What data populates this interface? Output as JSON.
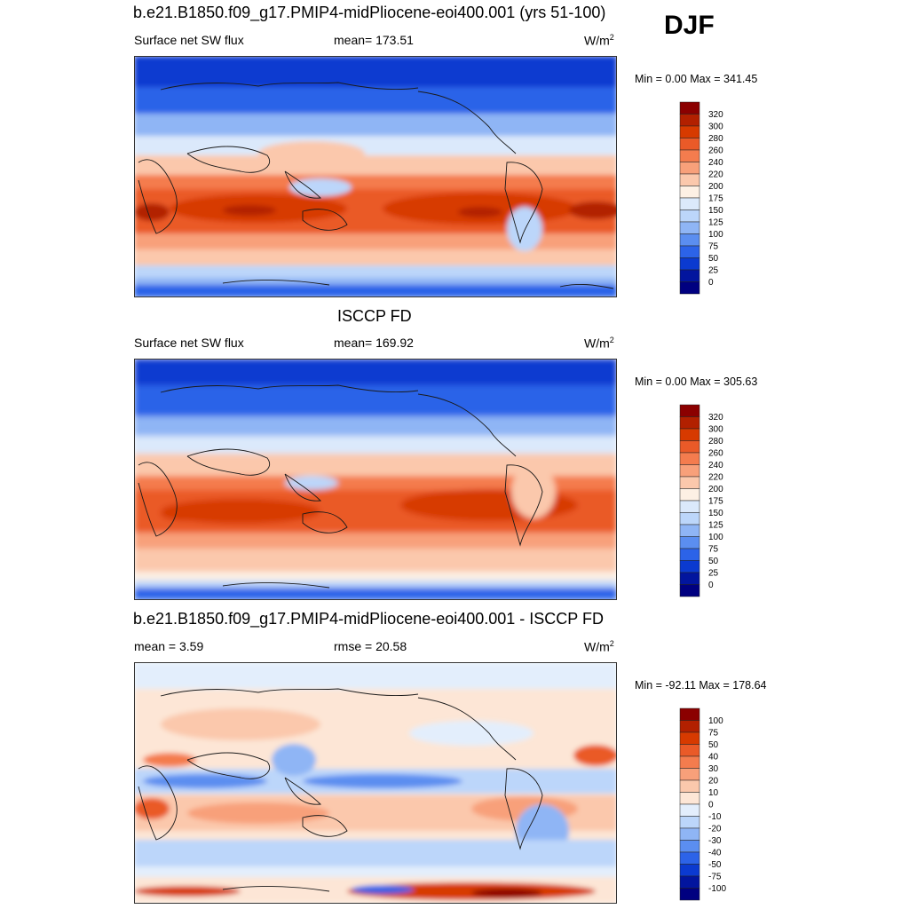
{
  "season": "DJF",
  "panels": [
    {
      "title": "b.e21.B1850.f09_g17.PMIP4-midPliocene-eoi400.001 (yrs 51-100)",
      "left": "Surface net SW flux",
      "center": "mean= 173.51",
      "units_base": "W/m",
      "units_exp": "2",
      "minmax": "Min =   0.00 Max = 341.45",
      "colorbar_levels": [
        "320",
        "300",
        "280",
        "260",
        "240",
        "220",
        "200",
        "175",
        "150",
        "125",
        "100",
        "75",
        "50",
        "25",
        "0"
      ]
    },
    {
      "title": "ISCCP FD",
      "left": "Surface net SW flux",
      "center": "mean= 169.92",
      "units_base": "W/m",
      "units_exp": "2",
      "minmax": "Min =   0.00 Max = 305.63",
      "colorbar_levels": [
        "320",
        "300",
        "280",
        "260",
        "240",
        "220",
        "200",
        "175",
        "150",
        "125",
        "100",
        "75",
        "50",
        "25",
        "0"
      ]
    },
    {
      "title": "b.e21.B1850.f09_g17.PMIP4-midPliocene-eoi400.001 - ISCCP FD",
      "left": "mean =   3.59",
      "center": "rmse =  20.58",
      "units_base": "W/m",
      "units_exp": "2",
      "minmax": "Min = -92.11 Max = 178.64",
      "colorbar_levels": [
        "100",
        "75",
        "50",
        "40",
        "30",
        "20",
        "10",
        "0",
        "-10",
        "-20",
        "-30",
        "-40",
        "-50",
        "-75",
        "-100"
      ]
    }
  ],
  "colors": {
    "abs_scale": [
      "#8b0000",
      "#b22000",
      "#d73a00",
      "#ea5a28",
      "#f47c4e",
      "#f8a07a",
      "#fbc8ac",
      "#fdf0e4",
      "#dbe9fb",
      "#bcd6fa",
      "#8fb5f5",
      "#5b8ef0",
      "#2c63e8",
      "#0b3ad0",
      "#02159e",
      "#000080"
    ],
    "diff_scale": [
      "#8b0000",
      "#b22000",
      "#d73a00",
      "#ea5a28",
      "#f47c4e",
      "#f8a07a",
      "#fbc8ac",
      "#fde6d6",
      "#e3eefc",
      "#bcd6fa",
      "#8fb5f5",
      "#5b8ef0",
      "#2c63e8",
      "#0b3ad0",
      "#02159e",
      "#000080"
    ]
  }
}
